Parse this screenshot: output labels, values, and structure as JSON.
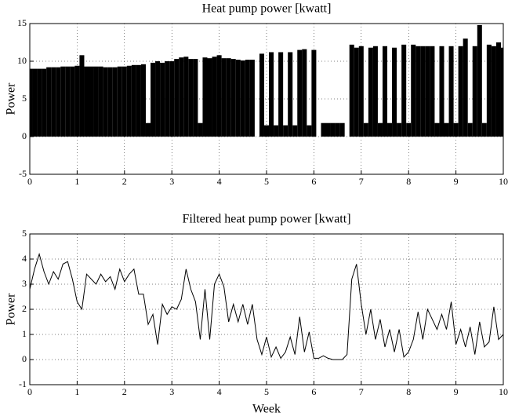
{
  "chart_data": [
    {
      "type": "bar",
      "title": "Heat pump power [kwatt]",
      "ylabel": "Power",
      "x": [
        0,
        0.1,
        0.2,
        0.3,
        0.4,
        0.5,
        0.6,
        0.7,
        0.8,
        0.9,
        1,
        1.1,
        1.2,
        1.3,
        1.4,
        1.5,
        1.6,
        1.7,
        1.8,
        1.9,
        2,
        2.1,
        2.2,
        2.3,
        2.4,
        2.5,
        2.6,
        2.7,
        2.8,
        2.9,
        3,
        3.1,
        3.2,
        3.3,
        3.4,
        3.5,
        3.6,
        3.7,
        3.8,
        3.9,
        4,
        4.1,
        4.2,
        4.3,
        4.4,
        4.5,
        4.6,
        4.7,
        4.8,
        4.9,
        5,
        5.1,
        5.2,
        5.3,
        5.4,
        5.5,
        5.6,
        5.7,
        5.8,
        5.9,
        6,
        6.1,
        6.2,
        6.3,
        6.4,
        6.5,
        6.6,
        6.7,
        6.8,
        6.9,
        7,
        7.1,
        7.2,
        7.3,
        7.4,
        7.5,
        7.6,
        7.7,
        7.8,
        7.9,
        8,
        8.1,
        8.2,
        8.3,
        8.4,
        8.5,
        8.6,
        8.7,
        8.8,
        8.9,
        9,
        9.1,
        9.2,
        9.3,
        9.4,
        9.5,
        9.6,
        9.7,
        9.8,
        9.9,
        10
      ],
      "series": [
        {
          "color": "#000000",
          "values": [
            9,
            9,
            9,
            9,
            9.2,
            9.2,
            9.2,
            9.3,
            9.3,
            9.3,
            9.4,
            10.8,
            9.3,
            9.3,
            9.3,
            9.3,
            9.2,
            9.2,
            9.2,
            9.3,
            9.3,
            9.4,
            9.5,
            9.5,
            9.6,
            1.8,
            9.8,
            10,
            9.8,
            10,
            10,
            10.3,
            10.5,
            10.6,
            10.3,
            10.3,
            1.8,
            10.5,
            10.4,
            10.6,
            10.8,
            10.4,
            10.4,
            10.3,
            10.2,
            10.1,
            10.2,
            10.2,
            0,
            11,
            1.5,
            11.2,
            1.5,
            11.2,
            1.5,
            11.2,
            1.5,
            11.5,
            11.6,
            1.5,
            11.5,
            0,
            1.8,
            1.8,
            1.8,
            1.8,
            1.8,
            0,
            12.2,
            11.8,
            12,
            1.8,
            11.8,
            12,
            1.8,
            12,
            1.8,
            11.8,
            1.8,
            12.2,
            1.8,
            12.2,
            12,
            12,
            12,
            12,
            1.8,
            12,
            1.8,
            12,
            1.8,
            12,
            13,
            1.8,
            12,
            14.8,
            1.8,
            12.2,
            12,
            12.5,
            11.8
          ]
        }
      ],
      "xlim": [
        0,
        10
      ],
      "ylim": [
        -5,
        15
      ],
      "xticks": [
        0,
        1,
        2,
        3,
        4,
        5,
        6,
        7,
        8,
        9,
        10
      ],
      "yticks": [
        -5,
        0,
        5,
        10,
        15
      ],
      "grid": true
    },
    {
      "type": "line",
      "title": "Filtered heat pump power [kwatt]",
      "ylabel": "Power",
      "xlabel": "Week",
      "x": [
        0,
        0.1,
        0.2,
        0.3,
        0.4,
        0.5,
        0.6,
        0.7,
        0.8,
        0.9,
        1,
        1.1,
        1.2,
        1.3,
        1.4,
        1.5,
        1.6,
        1.7,
        1.8,
        1.9,
        2,
        2.1,
        2.2,
        2.3,
        2.4,
        2.5,
        2.6,
        2.7,
        2.8,
        2.9,
        3,
        3.1,
        3.2,
        3.3,
        3.4,
        3.5,
        3.6,
        3.7,
        3.8,
        3.9,
        4,
        4.1,
        4.2,
        4.3,
        4.4,
        4.5,
        4.6,
        4.7,
        4.8,
        4.9,
        5,
        5.1,
        5.2,
        5.3,
        5.4,
        5.5,
        5.6,
        5.7,
        5.8,
        5.9,
        6,
        6.1,
        6.2,
        6.3,
        6.4,
        6.5,
        6.6,
        6.7,
        6.8,
        6.9,
        7,
        7.1,
        7.2,
        7.3,
        7.4,
        7.5,
        7.6,
        7.7,
        7.8,
        7.9,
        8,
        8.1,
        8.2,
        8.3,
        8.4,
        8.5,
        8.6,
        8.7,
        8.8,
        8.9,
        9,
        9.1,
        9.2,
        9.3,
        9.4,
        9.5,
        9.6,
        9.7,
        9.8,
        9.9,
        10
      ],
      "series": [
        {
          "color": "#000000",
          "values": [
            2.8,
            3.6,
            4.2,
            3.5,
            3.0,
            3.5,
            3.2,
            3.8,
            3.9,
            3.2,
            2.3,
            2.0,
            3.4,
            3.2,
            3.0,
            3.4,
            3.1,
            3.3,
            2.8,
            3.6,
            3.1,
            3.4,
            3.6,
            2.6,
            2.6,
            1.4,
            1.8,
            0.6,
            2.2,
            1.8,
            2.1,
            2.0,
            2.4,
            3.6,
            2.8,
            2.3,
            0.8,
            2.8,
            0.8,
            3.0,
            3.4,
            2.9,
            1.5,
            2.2,
            1.5,
            2.2,
            1.4,
            2.2,
            0.8,
            0.2,
            0.9,
            0.1,
            0.5,
            0.05,
            0.3,
            0.9,
            0.2,
            1.7,
            0.3,
            1.1,
            0.05,
            0.05,
            0.15,
            0.05,
            0,
            0,
            0,
            0.2,
            3.2,
            3.8,
            2.2,
            1.0,
            2.0,
            0.8,
            1.6,
            0.5,
            1.2,
            0.3,
            1.2,
            0.1,
            0.3,
            0.8,
            1.9,
            0.8,
            2.0,
            1.6,
            1.2,
            1.8,
            1.2,
            2.3,
            0.6,
            1.2,
            0.5,
            1.3,
            0.2,
            1.5,
            0.5,
            0.7,
            2.1,
            0.8,
            1.0
          ]
        }
      ],
      "xlim": [
        0,
        10
      ],
      "ylim": [
        -1,
        5
      ],
      "xticks": [
        0,
        1,
        2,
        3,
        4,
        5,
        6,
        7,
        8,
        9,
        10
      ],
      "yticks": [
        -1,
        0,
        1,
        2,
        3,
        4,
        5
      ],
      "grid": true
    }
  ]
}
